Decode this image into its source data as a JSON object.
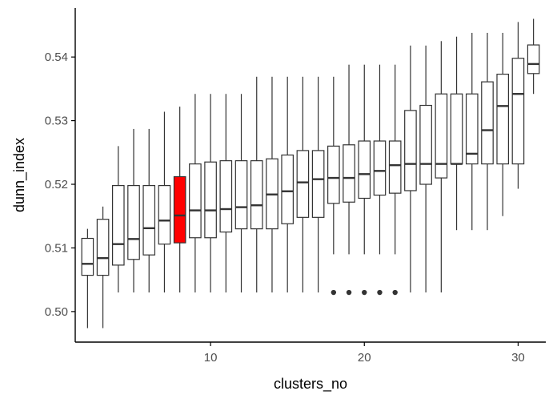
{
  "chart_data": {
    "type": "boxplot",
    "title": "",
    "xlabel": "clusters_no",
    "ylabel": "dunn_index",
    "xlim": [
      1.2,
      31.8
    ],
    "ylim": [
      0.4952,
      0.5477
    ],
    "x_ticks": [
      10,
      20,
      30
    ],
    "y_ticks": [
      0.5,
      0.51,
      0.52,
      0.53,
      0.54
    ],
    "y_tick_labels": [
      "0.50",
      "0.51",
      "0.52",
      "0.53",
      "0.54"
    ],
    "grid": false,
    "legend": "none",
    "box_color": "#ffffff",
    "line_color": "#333333",
    "highlight_color": "#ff0000",
    "highlight_x": 8,
    "boxes": [
      {
        "x": 2,
        "whisker_low": 0.4974,
        "q1": 0.5057,
        "median": 0.5075,
        "q3": 0.5115,
        "whisker_high": 0.513
      },
      {
        "x": 3,
        "whisker_low": 0.4974,
        "q1": 0.5057,
        "median": 0.5084,
        "q3": 0.5145,
        "whisker_high": 0.5165
      },
      {
        "x": 4,
        "whisker_low": 0.503,
        "q1": 0.5073,
        "median": 0.5106,
        "q3": 0.5198,
        "whisker_high": 0.526
      },
      {
        "x": 5,
        "whisker_low": 0.503,
        "q1": 0.5082,
        "median": 0.5114,
        "q3": 0.5198,
        "whisker_high": 0.5287
      },
      {
        "x": 6,
        "whisker_low": 0.503,
        "q1": 0.5089,
        "median": 0.5131,
        "q3": 0.5198,
        "whisker_high": 0.5287
      },
      {
        "x": 7,
        "whisker_low": 0.503,
        "q1": 0.5106,
        "median": 0.5143,
        "q3": 0.5198,
        "whisker_high": 0.5314
      },
      {
        "x": 8,
        "whisker_low": 0.503,
        "q1": 0.5108,
        "median": 0.5151,
        "q3": 0.5212,
        "whisker_high": 0.5322
      },
      {
        "x": 9,
        "whisker_low": 0.503,
        "q1": 0.5116,
        "median": 0.5159,
        "q3": 0.5232,
        "whisker_high": 0.5342
      },
      {
        "x": 10,
        "whisker_low": 0.503,
        "q1": 0.5116,
        "median": 0.5159,
        "q3": 0.5235,
        "whisker_high": 0.5342
      },
      {
        "x": 11,
        "whisker_low": 0.503,
        "q1": 0.5125,
        "median": 0.5161,
        "q3": 0.5237,
        "whisker_high": 0.5342
      },
      {
        "x": 12,
        "whisker_low": 0.503,
        "q1": 0.513,
        "median": 0.5164,
        "q3": 0.5237,
        "whisker_high": 0.5342
      },
      {
        "x": 13,
        "whisker_low": 0.503,
        "q1": 0.513,
        "median": 0.5167,
        "q3": 0.5237,
        "whisker_high": 0.5369
      },
      {
        "x": 14,
        "whisker_low": 0.503,
        "q1": 0.513,
        "median": 0.5184,
        "q3": 0.524,
        "whisker_high": 0.5369
      },
      {
        "x": 15,
        "whisker_low": 0.503,
        "q1": 0.5138,
        "median": 0.5189,
        "q3": 0.5246,
        "whisker_high": 0.5369
      },
      {
        "x": 16,
        "whisker_low": 0.503,
        "q1": 0.5148,
        "median": 0.5203,
        "q3": 0.5253,
        "whisker_high": 0.5369
      },
      {
        "x": 17,
        "whisker_low": 0.503,
        "q1": 0.5148,
        "median": 0.5208,
        "q3": 0.5253,
        "whisker_high": 0.5369
      },
      {
        "x": 18,
        "whisker_low": 0.509,
        "q1": 0.517,
        "median": 0.521,
        "q3": 0.526,
        "whisker_high": 0.5369
      },
      {
        "x": 19,
        "whisker_low": 0.509,
        "q1": 0.5172,
        "median": 0.521,
        "q3": 0.5262,
        "whisker_high": 0.5388
      },
      {
        "x": 20,
        "whisker_low": 0.509,
        "q1": 0.5178,
        "median": 0.5216,
        "q3": 0.5268,
        "whisker_high": 0.5388
      },
      {
        "x": 21,
        "whisker_low": 0.509,
        "q1": 0.5183,
        "median": 0.5221,
        "q3": 0.5268,
        "whisker_high": 0.5388
      },
      {
        "x": 22,
        "whisker_low": 0.509,
        "q1": 0.5186,
        "median": 0.523,
        "q3": 0.5268,
        "whisker_high": 0.5388
      },
      {
        "x": 23,
        "whisker_low": 0.503,
        "q1": 0.519,
        "median": 0.5232,
        "q3": 0.5316,
        "whisker_high": 0.5418
      },
      {
        "x": 24,
        "whisker_low": 0.503,
        "q1": 0.52,
        "median": 0.5232,
        "q3": 0.5324,
        "whisker_high": 0.5418
      },
      {
        "x": 25,
        "whisker_low": 0.503,
        "q1": 0.521,
        "median": 0.5232,
        "q3": 0.5342,
        "whisker_high": 0.5425
      },
      {
        "x": 26,
        "whisker_low": 0.5128,
        "q1": 0.5232,
        "median": 0.5232,
        "q3": 0.5342,
        "whisker_high": 0.5432
      },
      {
        "x": 27,
        "whisker_low": 0.5128,
        "q1": 0.5232,
        "median": 0.5248,
        "q3": 0.5342,
        "whisker_high": 0.5438
      },
      {
        "x": 28,
        "whisker_low": 0.5128,
        "q1": 0.5232,
        "median": 0.5285,
        "q3": 0.5361,
        "whisker_high": 0.5438
      },
      {
        "x": 29,
        "whisker_low": 0.515,
        "q1": 0.5232,
        "median": 0.5323,
        "q3": 0.5373,
        "whisker_high": 0.5438
      },
      {
        "x": 30,
        "whisker_low": 0.5193,
        "q1": 0.5232,
        "median": 0.5342,
        "q3": 0.5398,
        "whisker_high": 0.5455
      },
      {
        "x": 31,
        "whisker_low": 0.5342,
        "q1": 0.5374,
        "median": 0.5389,
        "q3": 0.5419,
        "whisker_high": 0.546
      }
    ],
    "outliers": [
      {
        "x": 18,
        "y": 0.503
      },
      {
        "x": 19,
        "y": 0.503
      },
      {
        "x": 20,
        "y": 0.503
      },
      {
        "x": 21,
        "y": 0.503
      },
      {
        "x": 22,
        "y": 0.503
      }
    ]
  }
}
